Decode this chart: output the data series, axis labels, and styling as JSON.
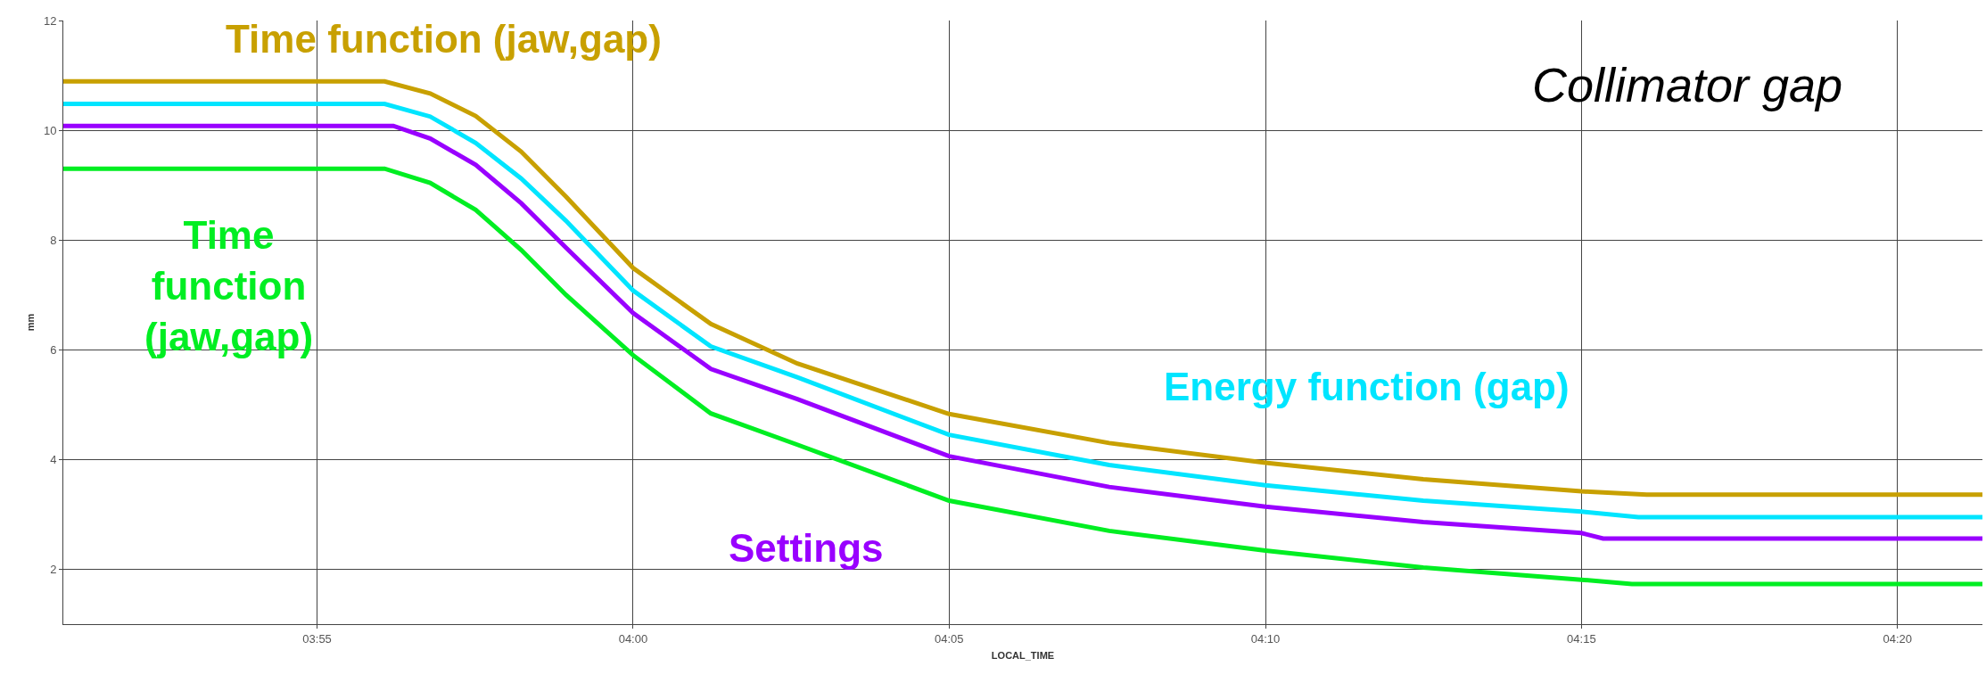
{
  "chart_data": {
    "type": "line",
    "title": "Collimator gap",
    "xlabel": "LOCAL_TIME",
    "ylabel": "mm",
    "xlim": [
      3.8498,
      4.3557
    ],
    "ylim": [
      1,
      12
    ],
    "xticks": [
      {
        "value": 3.9167,
        "label": "03:55"
      },
      {
        "value": 4.0,
        "label": "04:00"
      },
      {
        "value": 4.0833,
        "label": "04:05"
      },
      {
        "value": 4.1667,
        "label": "04:10"
      },
      {
        "value": 4.25,
        "label": "04:15"
      },
      {
        "value": 4.3333,
        "label": "04:20"
      }
    ],
    "yticks": [
      2,
      4,
      6,
      8,
      10,
      12
    ],
    "grid": true,
    "legend": false,
    "marker": "none",
    "line_style": "solid",
    "series": [
      {
        "name": "Time function (jaw,gap)",
        "color": "#c8a000",
        "x": [
          3.8498,
          3.9345,
          3.9465,
          3.9585,
          3.9705,
          3.9823,
          4.0,
          4.0205,
          4.0433,
          4.0833,
          4.1255,
          4.1667,
          4.2083,
          4.25,
          4.2672,
          4.3557
        ],
        "values": [
          10.89,
          10.89,
          10.67,
          10.26,
          9.61,
          8.79,
          7.49,
          6.47,
          5.75,
          4.83,
          4.3,
          3.94,
          3.64,
          3.42,
          3.36,
          3.36
        ]
      },
      {
        "name": "Energy function (gap)",
        "color": "#00e5ff",
        "x": [
          3.8498,
          3.9345,
          3.9465,
          3.9585,
          3.9705,
          3.9823,
          4.0,
          4.0205,
          4.0433,
          4.0833,
          4.1255,
          4.1667,
          4.2083,
          4.25,
          4.265,
          4.3557
        ],
        "values": [
          10.48,
          10.48,
          10.25,
          9.77,
          9.12,
          8.35,
          7.08,
          6.06,
          5.5,
          4.45,
          3.9,
          3.53,
          3.25,
          3.05,
          2.95,
          2.95
        ]
      },
      {
        "name": "Settings",
        "color": "#9900ff",
        "x": [
          3.8498,
          3.9368,
          3.9465,
          3.9585,
          3.9705,
          3.9823,
          4.0,
          4.0205,
          4.0433,
          4.0833,
          4.1255,
          4.1667,
          4.2083,
          4.25,
          4.2557,
          4.3557
        ],
        "values": [
          10.08,
          10.08,
          9.85,
          9.37,
          8.67,
          7.86,
          6.67,
          5.65,
          5.1,
          4.06,
          3.5,
          3.14,
          2.86,
          2.66,
          2.56,
          2.56
        ]
      },
      {
        "name": "Time\nfunction\n(jaw,gap)",
        "color": "#00ee22",
        "x": [
          3.8498,
          3.9345,
          3.9465,
          3.9585,
          3.9705,
          3.9823,
          4.0,
          4.0205,
          4.0433,
          4.0833,
          4.1255,
          4.1667,
          4.2083,
          4.25,
          4.2633,
          4.3557
        ],
        "values": [
          9.3,
          9.3,
          9.04,
          8.55,
          7.82,
          7.0,
          5.9,
          4.84,
          4.27,
          3.25,
          2.7,
          2.34,
          2.03,
          1.81,
          1.73,
          1.73
        ]
      }
    ]
  }
}
